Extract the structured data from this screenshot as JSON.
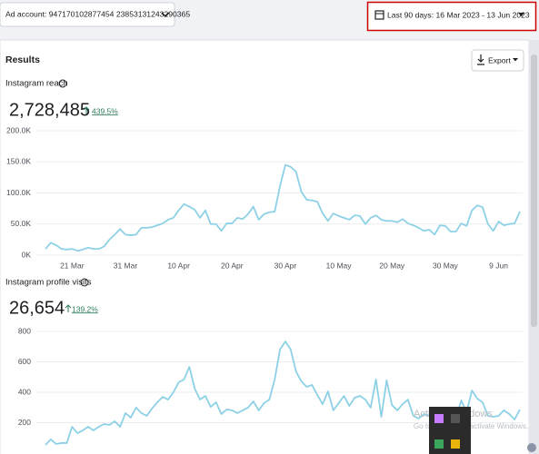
{
  "top_bar": {
    "ad_account": "Ad account: 947170102877454 23853131243290365",
    "date_range": "Last 90 days: 16 Mar 2023 - 13 Jun 2023"
  },
  "results": {
    "title": "Results",
    "export": "Export"
  },
  "watermark": {
    "title": "Activate Windows",
    "text": "Go to Settings to activate Windows."
  },
  "chart_data": [
    {
      "type": "line",
      "title": "Instagram reach",
      "total": "2,728,485",
      "change": "439.5%",
      "color": "#8dd1e6",
      "grid": true,
      "categories": [
        null,
        null,
        null,
        null,
        null,
        "21 Mar",
        null,
        null,
        null,
        null,
        null,
        null,
        null,
        null,
        null,
        "31 Mar",
        null,
        null,
        null,
        null,
        null,
        null,
        null,
        null,
        null,
        "10 Apr",
        null,
        null,
        null,
        null,
        null,
        null,
        null,
        null,
        null,
        "20 Apr",
        null,
        null,
        null,
        null,
        null,
        null,
        null,
        null,
        null,
        "30 Apr",
        null,
        null,
        null,
        null,
        null,
        null,
        null,
        null,
        null,
        "10 May",
        null,
        null,
        null,
        null,
        null,
        null,
        null,
        null,
        null,
        "20 May",
        null,
        null,
        null,
        null,
        null,
        null,
        null,
        null,
        null,
        "30 May",
        null,
        null,
        null,
        null,
        null,
        null,
        null,
        null,
        null,
        "9 Jun",
        null,
        null,
        null,
        null
      ],
      "values": [
        10000,
        20000,
        16000,
        10000,
        9000,
        10000,
        7000,
        9000,
        12000,
        10000,
        10000,
        14000,
        25000,
        33000,
        42000,
        33000,
        32000,
        33000,
        44000,
        44000,
        45000,
        48000,
        51000,
        57000,
        60000,
        72000,
        82000,
        78000,
        73000,
        60000,
        72000,
        50000,
        50000,
        39000,
        51000,
        51000,
        60000,
        58000,
        66000,
        78000,
        57000,
        66000,
        69000,
        70000,
        111000,
        145000,
        142000,
        134000,
        102000,
        89000,
        88000,
        86000,
        67000,
        55000,
        67000,
        63000,
        60000,
        57000,
        64000,
        63000,
        50000,
        60000,
        64000,
        57000,
        55000,
        55000,
        53000,
        58000,
        51000,
        48000,
        44000,
        39000,
        41000,
        33000,
        48000,
        47000,
        38000,
        38000,
        51000,
        47000,
        72000,
        80000,
        77000,
        50000,
        39000,
        54000,
        48000,
        50000,
        51000,
        70000
      ],
      "ylim": [
        0,
        200000
      ],
      "yticks": [
        {
          "value": 0,
          "label": "0K"
        },
        {
          "value": 50000,
          "label": "50.0K"
        },
        {
          "value": 100000,
          "label": "100.0K"
        },
        {
          "value": 150000,
          "label": "150.0K"
        },
        {
          "value": 200000,
          "label": "200.0K"
        }
      ]
    },
    {
      "type": "line",
      "title": "Instagram profile visits",
      "total": "26,654",
      "change": "139.2%",
      "color": "#8dd1e6",
      "grid": true,
      "values": [
        54,
        90,
        60,
        66,
        66,
        173,
        131,
        149,
        173,
        149,
        173,
        191,
        185,
        209,
        173,
        263,
        233,
        299,
        263,
        245,
        293,
        334,
        370,
        352,
        400,
        466,
        484,
        567,
        424,
        352,
        376,
        304,
        334,
        257,
        287,
        281,
        263,
        281,
        299,
        340,
        281,
        328,
        352,
        484,
        681,
        734,
        681,
        537,
        472,
        436,
        448,
        382,
        322,
        406,
        281,
        328,
        376,
        310,
        364,
        376,
        352,
        299,
        484,
        239,
        478,
        316,
        281,
        322,
        352,
        245,
        227,
        257,
        245,
        215,
        263,
        293,
        185,
        233,
        346,
        269,
        412,
        358,
        334,
        245,
        239,
        245,
        281,
        257,
        221,
        287
      ],
      "ylim": [
        0,
        800
      ],
      "yticks": [
        200,
        400,
        600,
        800
      ]
    }
  ]
}
